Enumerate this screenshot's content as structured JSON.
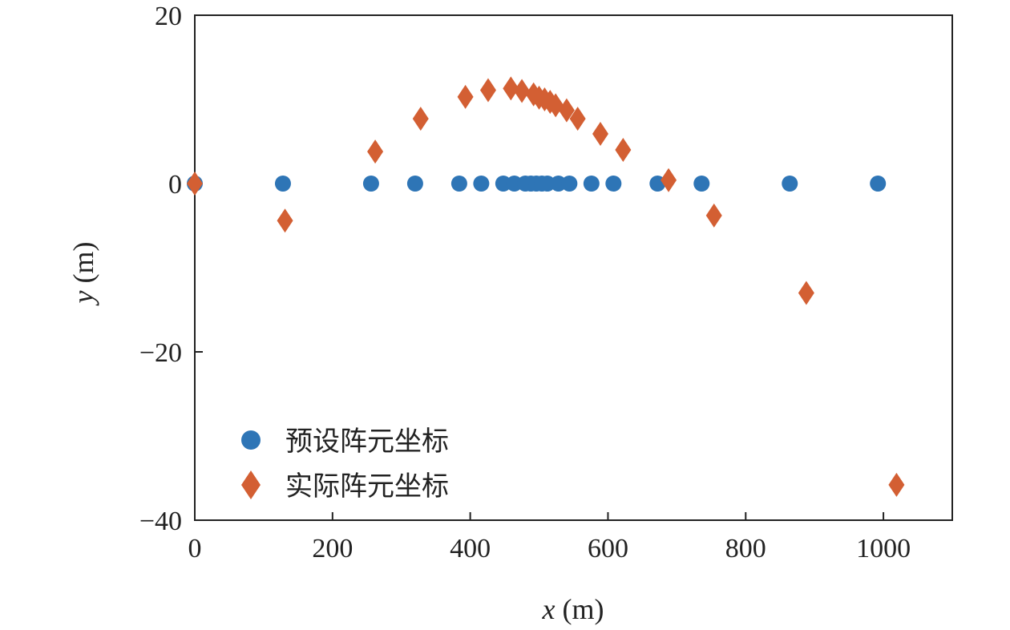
{
  "chart_data": {
    "type": "scatter",
    "xlabel_var": "x",
    "xlabel_unit": " (m)",
    "ylabel_var": "y",
    "ylabel_unit": " (m)",
    "xlim": [
      0,
      1100
    ],
    "ylim": [
      -40,
      20
    ],
    "x_ticks": [
      0,
      200,
      400,
      600,
      800,
      1000
    ],
    "x_tick_labels": [
      "0",
      "200",
      "400",
      "600",
      "800",
      "1000"
    ],
    "y_ticks": [
      20,
      0,
      -20,
      -40
    ],
    "y_tick_labels": [
      "20",
      "0",
      "−20",
      "−40"
    ],
    "grid": false,
    "legend_position": "lower-left",
    "series": [
      {
        "name": "预设阵元坐标",
        "marker": "circle",
        "color": "#2e75b6",
        "x": [
          0,
          128,
          256,
          320,
          384,
          416,
          448,
          464,
          480,
          488,
          496,
          504,
          512,
          528,
          544,
          576,
          608,
          672,
          736,
          864,
          992
        ],
        "y": [
          0,
          0,
          0,
          0,
          0,
          0,
          0,
          0,
          0,
          0,
          0,
          0,
          0,
          0,
          0,
          0,
          0,
          0,
          0,
          0,
          0
        ]
      },
      {
        "name": "实际阵元坐标",
        "marker": "diamond",
        "color": "#d35f33",
        "x": [
          0,
          131,
          262,
          328,
          393,
          426,
          459,
          475,
          492,
          500,
          508,
          516,
          524,
          540,
          556,
          589,
          622,
          688,
          754,
          888,
          1019
        ],
        "y": [
          0,
          -4.4,
          3.8,
          7.7,
          10.3,
          11.1,
          11.3,
          11.0,
          10.6,
          10.2,
          10.0,
          9.7,
          9.3,
          8.7,
          7.7,
          5.9,
          4.0,
          0.4,
          -3.8,
          -13.0,
          -35.8
        ]
      }
    ]
  }
}
